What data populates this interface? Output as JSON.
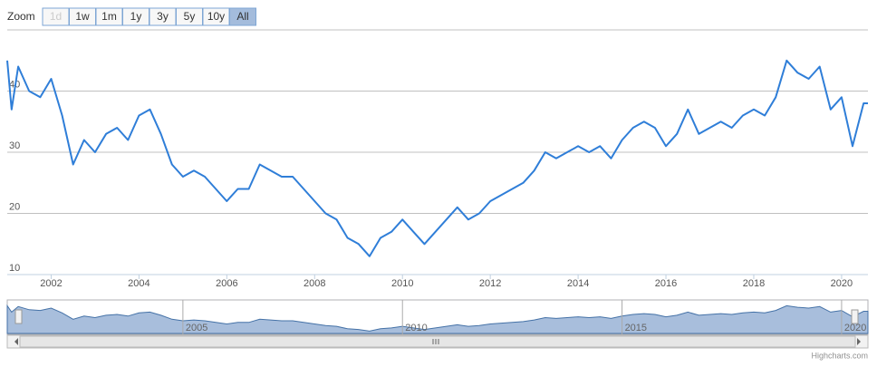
{
  "range_selector": {
    "label": "Zoom",
    "buttons": [
      "1d",
      "1w",
      "1m",
      "1y",
      "3y",
      "5y",
      "10y",
      "All"
    ],
    "disabled": 0,
    "selected": 7
  },
  "chart_data": {
    "type": "line",
    "color": "#2f7ed8",
    "x": [
      2001.0,
      2001.1,
      2001.25,
      2001.5,
      2001.75,
      2002.0,
      2002.25,
      2002.5,
      2002.75,
      2003.0,
      2003.25,
      2003.5,
      2003.75,
      2004.0,
      2004.25,
      2004.5,
      2004.75,
      2005.0,
      2005.25,
      2005.5,
      2005.75,
      2006.0,
      2006.25,
      2006.5,
      2006.75,
      2007.0,
      2007.25,
      2007.5,
      2007.75,
      2008.0,
      2008.25,
      2008.5,
      2008.75,
      2009.0,
      2009.25,
      2009.5,
      2009.75,
      2010.0,
      2010.25,
      2010.5,
      2010.75,
      2011.0,
      2011.25,
      2011.5,
      2011.75,
      2012.0,
      2012.25,
      2012.5,
      2012.75,
      2013.0,
      2013.25,
      2013.5,
      2013.75,
      2014.0,
      2014.25,
      2014.5,
      2014.75,
      2015.0,
      2015.25,
      2015.5,
      2015.75,
      2016.0,
      2016.25,
      2016.5,
      2016.75,
      2017.0,
      2017.25,
      2017.5,
      2017.75,
      2018.0,
      2018.25,
      2018.5,
      2018.75,
      2019.0,
      2019.25,
      2019.5,
      2019.75,
      2020.0,
      2020.25,
      2020.5,
      2020.6
    ],
    "values": [
      45,
      37,
      44,
      40,
      39,
      42,
      36,
      28,
      32,
      30,
      33,
      34,
      32,
      36,
      37,
      33,
      28,
      26,
      27,
      26,
      24,
      22,
      24,
      24,
      28,
      27,
      26,
      26,
      24,
      22,
      20,
      19,
      16,
      15,
      13,
      16,
      17,
      19,
      17,
      15,
      17,
      19,
      21,
      19,
      20,
      22,
      23,
      24,
      25,
      27,
      30,
      29,
      30,
      31,
      30,
      31,
      29,
      32,
      34,
      35,
      34,
      31,
      33,
      37,
      33,
      34,
      35,
      34,
      36,
      37,
      36,
      39,
      45,
      43,
      42,
      44,
      37,
      39,
      31,
      38,
      38
    ],
    "xlim": [
      2001.0,
      2020.6
    ],
    "ylim": [
      10,
      50
    ],
    "xticks": [
      2002,
      2004,
      2006,
      2008,
      2010,
      2012,
      2014,
      2016,
      2018,
      2020
    ],
    "yticks": [
      10,
      20,
      30,
      40
    ],
    "grid": true,
    "navigator": {
      "xticks": [
        2005,
        2010,
        2015,
        2020
      ]
    }
  },
  "credits": "Highcharts.com"
}
